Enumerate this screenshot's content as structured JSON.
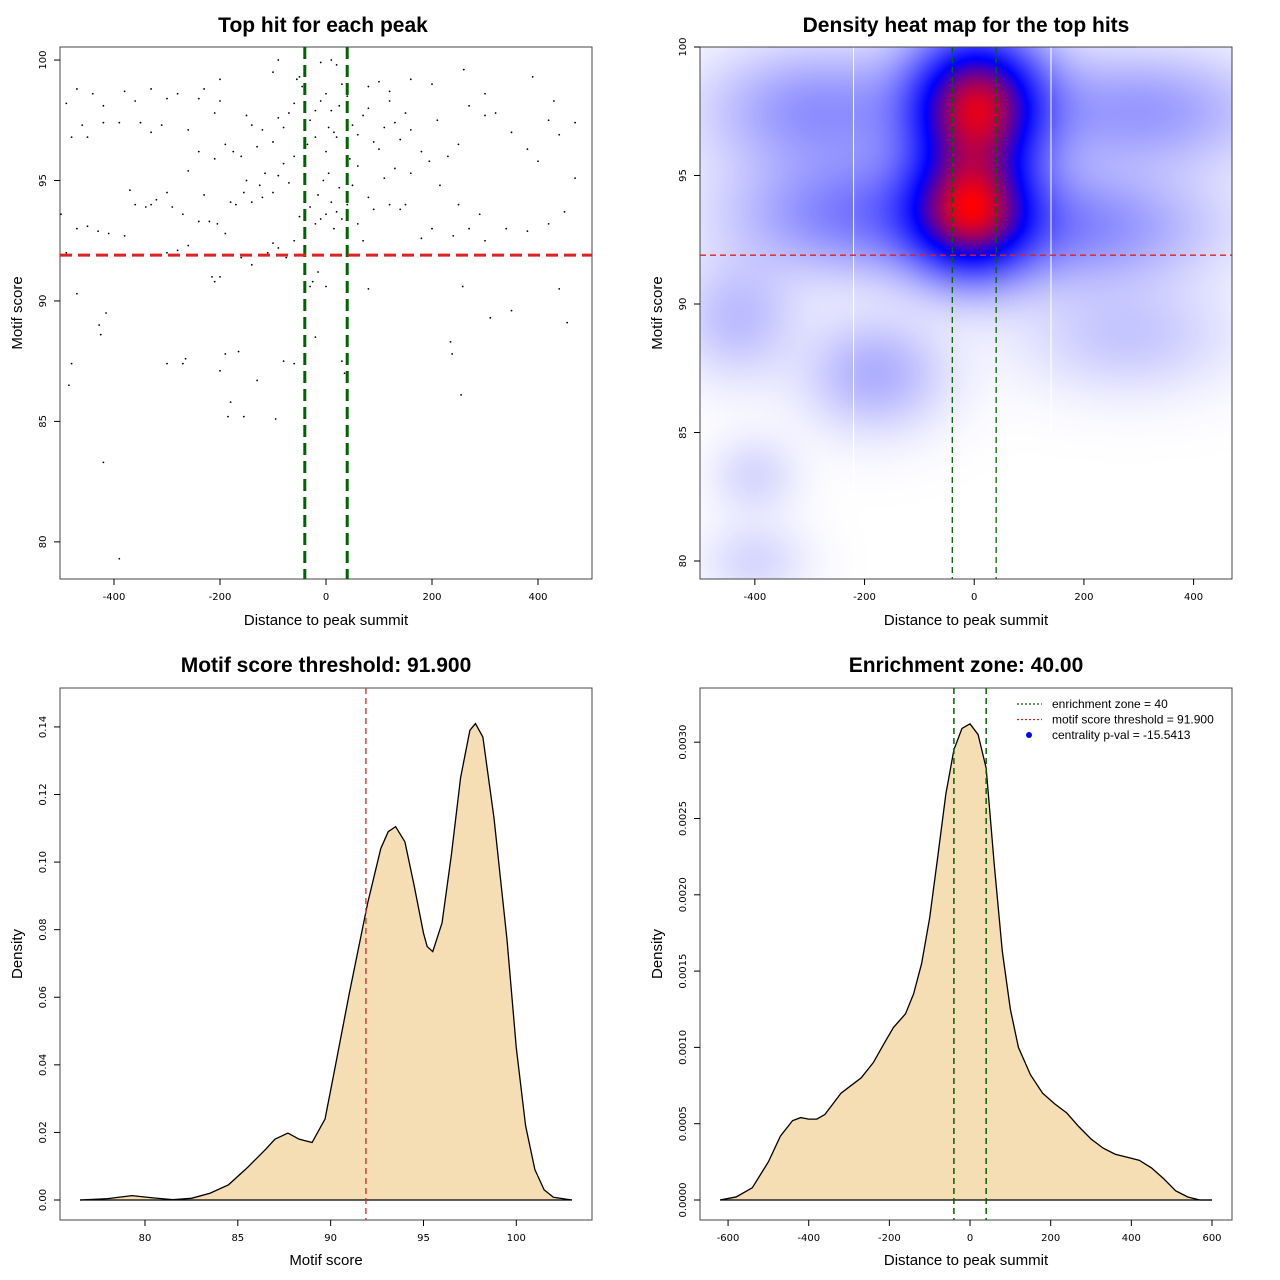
{
  "chart_data": [
    {
      "type": "scatter",
      "title": "Top hit for each peak",
      "xlabel": "Distance to peak summit",
      "ylabel": "Motif score",
      "xlim": [
        -500,
        500
      ],
      "ylim": [
        78.5,
        100.5
      ],
      "xticks": [
        "-400",
        "-200",
        "0",
        "200",
        "400"
      ],
      "yticks": [
        "80",
        "85",
        "90",
        "95",
        "100"
      ],
      "vlines": [
        -40,
        40
      ],
      "hline": 91.9,
      "vline_color": "#006400",
      "hline_color": "#dd2222",
      "points": [
        [
          -390,
          79.3
        ],
        [
          -420,
          83.3
        ],
        [
          -485,
          86.5
        ],
        [
          -480,
          87.4
        ],
        [
          -425,
          88.6
        ],
        [
          -428,
          89.0
        ],
        [
          -415,
          89.5
        ],
        [
          -470,
          90.3
        ],
        [
          -300,
          87.4
        ],
        [
          -270,
          87.4
        ],
        [
          -265,
          87.6
        ],
        [
          -200,
          87.1
        ],
        [
          -190,
          87.8
        ],
        [
          -165,
          87.9
        ],
        [
          -180,
          85.8
        ],
        [
          -185,
          85.2
        ],
        [
          -155,
          85.2
        ],
        [
          -130,
          86.7
        ],
        [
          -95,
          85.1
        ],
        [
          -80,
          87.5
        ],
        [
          -60,
          87.4
        ],
        [
          -20,
          88.5
        ],
        [
          -15,
          91.2
        ],
        [
          -25,
          90.8
        ],
        [
          -30,
          90.6
        ],
        [
          0,
          90.6
        ],
        [
          30,
          87.5
        ],
        [
          35,
          87.0
        ],
        [
          40,
          90.5
        ],
        [
          80,
          90.5
        ],
        [
          235,
          88.3
        ],
        [
          238,
          87.8
        ],
        [
          255,
          86.1
        ],
        [
          258,
          90.6
        ],
        [
          310,
          89.3
        ],
        [
          350,
          89.6
        ],
        [
          440,
          90.5
        ],
        [
          455,
          89.1
        ],
        [
          -200,
          91.0
        ],
        [
          -215,
          91.0
        ],
        [
          -210,
          90.8
        ],
        [
          -160,
          91.8
        ],
        [
          -140,
          91.5
        ],
        [
          -110,
          92.0
        ],
        [
          -100,
          92.4
        ],
        [
          -90,
          92.2
        ],
        [
          -75,
          91.8
        ],
        [
          -60,
          92.5
        ],
        [
          -490,
          92.0
        ],
        [
          -470,
          93.0
        ],
        [
          -450,
          93.1
        ],
        [
          -430,
          92.9
        ],
        [
          -410,
          92.8
        ],
        [
          -380,
          92.7
        ],
        [
          -370,
          94.6
        ],
        [
          -360,
          94.0
        ],
        [
          -340,
          93.9
        ],
        [
          -330,
          94.0
        ],
        [
          -320,
          94.2
        ],
        [
          -300,
          92.0
        ],
        [
          -280,
          92.1
        ],
        [
          -260,
          92.3
        ],
        [
          -250,
          91.9
        ],
        [
          -240,
          93.3
        ],
        [
          -220,
          93.3
        ],
        [
          -205,
          93.2
        ],
        [
          -300,
          94.5
        ],
        [
          -290,
          93.9
        ],
        [
          -270,
          93.6
        ],
        [
          -230,
          94.4
        ],
        [
          -190,
          92.8
        ],
        [
          -180,
          94.1
        ],
        [
          -170,
          94.0
        ],
        [
          -155,
          94.5
        ],
        [
          -140,
          94.1
        ],
        [
          -120,
          94.3
        ],
        [
          -100,
          94.5
        ],
        [
          -90,
          95.2
        ],
        [
          -80,
          95.7
        ],
        [
          -70,
          94.9
        ],
        [
          -50,
          93.5
        ],
        [
          -40,
          94.2
        ],
        [
          -30,
          93.9
        ],
        [
          -20,
          93.2
        ],
        [
          -10,
          93.4
        ],
        [
          0,
          93.6
        ],
        [
          10,
          94.1
        ],
        [
          15,
          93.0
        ],
        [
          20,
          93.7
        ],
        [
          25,
          94.7
        ],
        [
          -15,
          94.4
        ],
        [
          -5,
          95.0
        ],
        [
          5,
          95.3
        ],
        [
          30,
          93.4
        ],
        [
          40,
          94.0
        ],
        [
          50,
          94.8
        ],
        [
          60,
          93.2
        ],
        [
          70,
          92.5
        ],
        [
          80,
          94.3
        ],
        [
          90,
          93.8
        ],
        [
          120,
          94.0
        ],
        [
          140,
          93.8
        ],
        [
          150,
          94.0
        ],
        [
          180,
          92.6
        ],
        [
          200,
          93.0
        ],
        [
          240,
          92.7
        ],
        [
          250,
          94.0
        ],
        [
          270,
          93.0
        ],
        [
          290,
          93.6
        ],
        [
          300,
          92.5
        ],
        [
          340,
          93.0
        ],
        [
          380,
          92.9
        ],
        [
          420,
          93.2
        ],
        [
          450,
          93.7
        ],
        [
          470,
          95.1
        ],
        [
          -500,
          93.6
        ],
        [
          -480,
          96.8
        ],
        [
          -460,
          97.3
        ],
        [
          -450,
          96.8
        ],
        [
          -420,
          97.4
        ],
        [
          -390,
          97.4
        ],
        [
          -350,
          97.4
        ],
        [
          -330,
          97.0
        ],
        [
          -310,
          97.3
        ],
        [
          -300,
          98.4
        ],
        [
          -280,
          98.6
        ],
        [
          -260,
          97.1
        ],
        [
          -240,
          98.4
        ],
        [
          -230,
          98.8
        ],
        [
          -210,
          97.8
        ],
        [
          -200,
          98.3
        ],
        [
          -190,
          96.5
        ],
        [
          -175,
          96.2
        ],
        [
          -160,
          96.0
        ],
        [
          -150,
          97.7
        ],
        [
          -140,
          97.3
        ],
        [
          -130,
          96.4
        ],
        [
          -120,
          97.1
        ],
        [
          -100,
          96.6
        ],
        [
          -90,
          97.6
        ],
        [
          -80,
          97.2
        ],
        [
          -70,
          97.8
        ],
        [
          -60,
          98.2
        ],
        [
          -55,
          99.2
        ],
        [
          -45,
          98.9
        ],
        [
          -30,
          97.5
        ],
        [
          -20,
          97.9
        ],
        [
          -10,
          98.3
        ],
        [
          0,
          98.6
        ],
        [
          5,
          97.2
        ],
        [
          10,
          97.9
        ],
        [
          15,
          97.0
        ],
        [
          20,
          96.8
        ],
        [
          25,
          98.1
        ],
        [
          30,
          99.0
        ],
        [
          40,
          98.5
        ],
        [
          50,
          97.3
        ],
        [
          60,
          96.9
        ],
        [
          70,
          97.7
        ],
        [
          80,
          98.0
        ],
        [
          90,
          96.6
        ],
        [
          100,
          96.3
        ],
        [
          110,
          97.2
        ],
        [
          120,
          98.3
        ],
        [
          130,
          97.4
        ],
        [
          140,
          96.7
        ],
        [
          150,
          97.8
        ],
        [
          160,
          97.1
        ],
        [
          180,
          96.2
        ],
        [
          195,
          95.8
        ],
        [
          210,
          97.5
        ],
        [
          230,
          96.0
        ],
        [
          250,
          96.5
        ],
        [
          270,
          98.1
        ],
        [
          300,
          97.7
        ],
        [
          320,
          97.8
        ],
        [
          350,
          97.0
        ],
        [
          380,
          96.3
        ],
        [
          400,
          95.8
        ],
        [
          420,
          97.5
        ],
        [
          440,
          96.9
        ],
        [
          470,
          97.4
        ],
        [
          -490,
          98.2
        ],
        [
          -470,
          98.8
        ],
        [
          -440,
          98.6
        ],
        [
          -420,
          98.1
        ],
        [
          -380,
          98.7
        ],
        [
          -360,
          98.3
        ],
        [
          -330,
          98.8
        ],
        [
          -200,
          99.2
        ],
        [
          -100,
          99.5
        ],
        [
          -90,
          100.0
        ],
        [
          -50,
          99.3
        ],
        [
          -10,
          99.9
        ],
        [
          10,
          100.0
        ],
        [
          20,
          99.8
        ],
        [
          40,
          99.5
        ],
        [
          80,
          98.9
        ],
        [
          100,
          99.1
        ],
        [
          120,
          98.7
        ],
        [
          160,
          99.2
        ],
        [
          200,
          99.0
        ],
        [
          260,
          99.6
        ],
        [
          300,
          98.6
        ],
        [
          390,
          99.3
        ],
        [
          430,
          98.3
        ],
        [
          -20,
          96.8
        ],
        [
          0,
          96.2
        ],
        [
          -35,
          96.5
        ],
        [
          45,
          95.9
        ],
        [
          -60,
          96.0
        ],
        [
          60,
          95.6
        ],
        [
          -240,
          96.2
        ],
        [
          -260,
          95.4
        ],
        [
          -210,
          95.9
        ],
        [
          -150,
          95.0
        ],
        [
          -115,
          95.3
        ],
        [
          -125,
          94.8
        ],
        [
          110,
          95.1
        ],
        [
          130,
          95.5
        ],
        [
          160,
          95.3
        ],
        [
          215,
          94.8
        ]
      ]
    },
    {
      "type": "heatmap",
      "title": "Density heat map for the top hits",
      "xlabel": "Distance to peak summit",
      "ylabel": "Motif score",
      "xlim": [
        -500,
        470
      ],
      "ylim": [
        79.3,
        100
      ],
      "xticks": [
        "-400",
        "-200",
        "0",
        "200",
        "400"
      ],
      "yticks": [
        "80",
        "85",
        "90",
        "95",
        "100"
      ],
      "vlines": [
        -40,
        40
      ],
      "hline": 91.9,
      "grid_x": [
        -220,
        140
      ],
      "color_scale": [
        "#ffffff",
        "#0000ff",
        "#ff0000"
      ],
      "blobs": [
        {
          "x": 5,
          "y": 97.7,
          "sx": 80,
          "sy": 1.8,
          "w": 1.0
        },
        {
          "x": -5,
          "y": 93.6,
          "sx": 75,
          "sy": 1.6,
          "w": 0.85
        },
        {
          "x": -200,
          "y": 93.5,
          "sx": 150,
          "sy": 1.5,
          "w": 0.25
        },
        {
          "x": 180,
          "y": 93.0,
          "sx": 160,
          "sy": 1.5,
          "w": 0.22
        },
        {
          "x": -280,
          "y": 97.5,
          "sx": 130,
          "sy": 1.6,
          "w": 0.2
        },
        {
          "x": 300,
          "y": 97.5,
          "sx": 150,
          "sy": 1.5,
          "w": 0.18
        },
        {
          "x": -180,
          "y": 87.3,
          "sx": 80,
          "sy": 1.4,
          "w": 0.13
        },
        {
          "x": -430,
          "y": 89.5,
          "sx": 70,
          "sy": 1.5,
          "w": 0.1
        },
        {
          "x": 280,
          "y": 88.8,
          "sx": 120,
          "sy": 1.4,
          "w": 0.08
        },
        {
          "x": -400,
          "y": 83.3,
          "sx": 50,
          "sy": 1.0,
          "w": 0.05
        },
        {
          "x": -400,
          "y": 80.0,
          "sx": 60,
          "sy": 1.0,
          "w": 0.05
        }
      ]
    },
    {
      "type": "area",
      "title": "Motif score threshold: 91.900",
      "xlabel": "Motif score",
      "ylabel": "Density",
      "xlim": [
        76.5,
        103.0
      ],
      "ylim": [
        0,
        0.14
      ],
      "xticks": [
        "80",
        "85",
        "90",
        "95",
        "100"
      ],
      "yticks": [
        "0.00",
        "0.02",
        "0.04",
        "0.06",
        "0.08",
        "0.10",
        "0.12",
        "0.14"
      ],
      "vline": 91.9,
      "fill": "#f5deb3",
      "x": [
        76.5,
        78.0,
        79.3,
        80.5,
        81.5,
        82.5,
        83.5,
        84.5,
        85.5,
        86.5,
        87.0,
        87.7,
        88.3,
        89.0,
        89.7,
        90.3,
        91.0,
        92.0,
        92.7,
        93.1,
        93.5,
        94.0,
        94.5,
        95.0,
        95.2,
        95.5,
        96.0,
        96.5,
        97.0,
        97.5,
        97.8,
        98.2,
        98.8,
        99.5,
        100.0,
        100.5,
        101.0,
        101.5,
        102.0,
        103.0
      ],
      "y": [
        0.0,
        0.0004,
        0.0013,
        0.0006,
        0.0001,
        0.0005,
        0.002,
        0.0045,
        0.0095,
        0.015,
        0.018,
        0.0198,
        0.018,
        0.017,
        0.024,
        0.041,
        0.061,
        0.088,
        0.104,
        0.109,
        0.1105,
        0.106,
        0.093,
        0.079,
        0.075,
        0.0735,
        0.082,
        0.102,
        0.125,
        0.139,
        0.141,
        0.137,
        0.113,
        0.077,
        0.045,
        0.022,
        0.009,
        0.003,
        0.0008,
        0.0
      ]
    },
    {
      "type": "area",
      "title": "Enrichment zone: 40.00",
      "xlabel": "Distance to peak summit",
      "ylabel": "Density",
      "xlim": [
        -620,
        600
      ],
      "ylim": [
        0,
        0.0031
      ],
      "xticks": [
        "-600",
        "-400",
        "-200",
        "0",
        "200",
        "400",
        "600"
      ],
      "yticks": [
        "0.0000",
        "0.0005",
        "0.0010",
        "0.0015",
        "0.0020",
        "0.0025",
        "0.0030"
      ],
      "vlines": [
        -40,
        40
      ],
      "fill": "#f5deb3",
      "x": [
        -620,
        -580,
        -540,
        -500,
        -470,
        -440,
        -420,
        -400,
        -380,
        -360,
        -340,
        -320,
        -300,
        -270,
        -240,
        -210,
        -190,
        -160,
        -140,
        -120,
        -100,
        -80,
        -60,
        -40,
        -20,
        0,
        20,
        40,
        60,
        80,
        100,
        120,
        150,
        180,
        210,
        240,
        270,
        300,
        330,
        360,
        390,
        420,
        450,
        480,
        510,
        540,
        570,
        600
      ],
      "y": [
        0.0,
        2e-05,
        8e-05,
        0.00025,
        0.00042,
        0.00052,
        0.00054,
        0.00053,
        0.00053,
        0.00056,
        0.00063,
        0.0007,
        0.00074,
        0.0008,
        0.0009,
        0.00104,
        0.00113,
        0.00122,
        0.00135,
        0.00155,
        0.00185,
        0.00225,
        0.00266,
        0.00295,
        0.00309,
        0.00312,
        0.00305,
        0.00283,
        0.0022,
        0.00163,
        0.00125,
        0.001,
        0.00082,
        0.0007,
        0.00063,
        0.00057,
        0.00048,
        0.0004,
        0.00034,
        0.0003,
        0.00028,
        0.00026,
        0.00021,
        0.00014,
        6e-05,
        2e-05,
        0.0,
        0.0
      ],
      "legend": [
        {
          "label": "enrichment zone = 40",
          "color": "#006400",
          "style": "dotted"
        },
        {
          "label": "motif score threshold = 91.900",
          "color": "#dd2222",
          "style": "dotted"
        },
        {
          "label": "centrality p-val = -15.5413",
          "color": "#0000ff",
          "style": "point"
        }
      ]
    }
  ]
}
